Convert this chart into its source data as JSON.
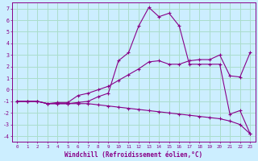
{
  "xlabel": "Windchill (Refroidissement éolien,°C)",
  "ylabel": "",
  "bg_color": "#cceeff",
  "grid_color": "#aaddcc",
  "line_color": "#880088",
  "xlim": [
    -0.5,
    23.5
  ],
  "ylim": [
    -4.5,
    7.5
  ],
  "xticks": [
    0,
    1,
    2,
    3,
    4,
    5,
    6,
    7,
    8,
    9,
    10,
    11,
    12,
    13,
    14,
    15,
    16,
    17,
    18,
    19,
    20,
    21,
    22,
    23
  ],
  "yticks": [
    -4,
    -3,
    -2,
    -1,
    0,
    1,
    2,
    3,
    4,
    5,
    6,
    7
  ],
  "line1_x": [
    0,
    1,
    2,
    3,
    4,
    5,
    6,
    7,
    8,
    9,
    10,
    11,
    12,
    13,
    14,
    15,
    16,
    17,
    18,
    19,
    20,
    21,
    22,
    23
  ],
  "line1_y": [
    -1.0,
    -1.0,
    -1.0,
    -1.2,
    -1.1,
    -1.1,
    -0.5,
    -0.3,
    0.0,
    0.3,
    0.8,
    1.3,
    1.8,
    2.4,
    2.5,
    2.2,
    2.2,
    2.5,
    2.6,
    2.6,
    3.0,
    1.2,
    1.1,
    3.2
  ],
  "line2_x": [
    0,
    1,
    2,
    3,
    4,
    5,
    6,
    7,
    8,
    9,
    10,
    11,
    12,
    13,
    14,
    15,
    16,
    17,
    18,
    19,
    20,
    21,
    22,
    23
  ],
  "line2_y": [
    -1.0,
    -1.0,
    -1.0,
    -1.2,
    -1.2,
    -1.2,
    -1.1,
    -1.0,
    -0.6,
    -0.3,
    2.5,
    3.2,
    5.5,
    7.1,
    6.3,
    6.6,
    5.5,
    2.2,
    2.2,
    2.2,
    2.2,
    -2.1,
    -1.8,
    -3.8
  ],
  "line3_x": [
    0,
    1,
    2,
    3,
    4,
    5,
    6,
    7,
    8,
    9,
    10,
    11,
    12,
    13,
    14,
    15,
    16,
    17,
    18,
    19,
    20,
    21,
    22,
    23
  ],
  "line3_y": [
    -1.0,
    -1.0,
    -1.0,
    -1.2,
    -1.2,
    -1.2,
    -1.2,
    -1.2,
    -1.3,
    -1.4,
    -1.5,
    -1.6,
    -1.7,
    -1.8,
    -1.9,
    -2.0,
    -2.1,
    -2.2,
    -2.3,
    -2.4,
    -2.5,
    -2.7,
    -3.0,
    -3.8
  ]
}
